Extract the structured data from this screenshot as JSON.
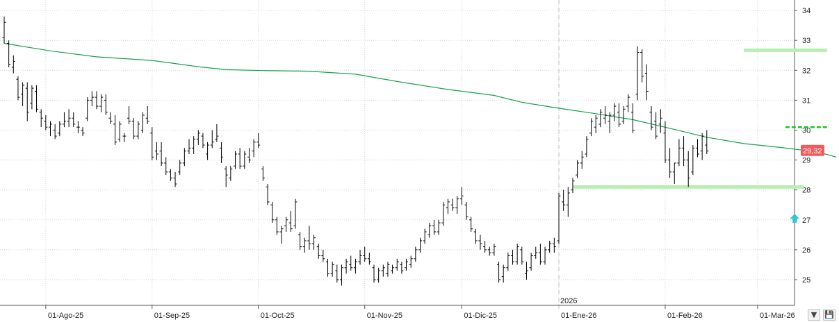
{
  "chart_data": {
    "type": "bar",
    "subtype": "ohlc",
    "title": "",
    "ylim": [
      24.2,
      34.4
    ],
    "y_ticks": [
      25,
      26,
      27,
      28,
      29,
      30,
      31,
      32,
      33,
      34
    ],
    "x_ticks": [
      {
        "label": "01-Ago-25",
        "index": 9
      },
      {
        "label": "01-Sep-25",
        "index": 32
      },
      {
        "label": "01-Oct-25",
        "index": 55
      },
      {
        "label": "01-Nov-25",
        "index": 78
      },
      {
        "label": "01-Dic-25",
        "index": 99
      },
      {
        "label": "01-Ene-26",
        "index": 120
      },
      {
        "label": "01-Feb-26",
        "index": 143
      },
      {
        "label": "01-Mar-26",
        "index": 163
      }
    ],
    "year_marker": {
      "label": "2026",
      "index": 120
    },
    "last_price": "29,32",
    "last_price_value": 29.32,
    "ohlc": [
      [
        33.1,
        33.8,
        32.9,
        33.6
      ],
      [
        32.9,
        33.0,
        32.1,
        32.2
      ],
      [
        32.1,
        32.5,
        31.9,
        32.3
      ],
      [
        31.7,
        31.8,
        31.0,
        31.1
      ],
      [
        31.2,
        31.6,
        30.8,
        31.5
      ],
      [
        31.4,
        31.6,
        30.3,
        30.6
      ],
      [
        30.9,
        31.5,
        30.7,
        31.4
      ],
      [
        31.3,
        31.5,
        30.6,
        30.7
      ],
      [
        30.6,
        30.7,
        30.1,
        30.4
      ],
      [
        30.3,
        30.5,
        30.0,
        30.1
      ],
      [
        30.1,
        30.3,
        29.8,
        30.2
      ],
      [
        30.0,
        30.2,
        29.7,
        29.8
      ],
      [
        29.9,
        30.3,
        29.8,
        30.2
      ],
      [
        30.2,
        30.6,
        30.1,
        30.3
      ],
      [
        30.3,
        30.7,
        30.1,
        30.4
      ],
      [
        30.4,
        30.6,
        30.1,
        30.2
      ],
      [
        30.1,
        30.3,
        29.9,
        30.1
      ],
      [
        30.0,
        30.1,
        29.8,
        29.9
      ],
      [
        30.4,
        31.1,
        30.3,
        31.0
      ],
      [
        31.0,
        31.3,
        30.8,
        31.1
      ],
      [
        31.1,
        31.3,
        30.7,
        30.8
      ],
      [
        30.8,
        31.2,
        30.6,
        31.1
      ],
      [
        31.0,
        31.2,
        30.5,
        30.6
      ],
      [
        30.4,
        30.6,
        30.2,
        30.3
      ],
      [
        30.2,
        30.5,
        29.5,
        29.6
      ],
      [
        29.7,
        30.3,
        29.6,
        30.2
      ],
      [
        29.8,
        29.9,
        29.6,
        29.8
      ],
      [
        30.4,
        30.8,
        30.2,
        30.3
      ],
      [
        30.3,
        30.4,
        29.7,
        29.8
      ],
      [
        29.8,
        30.3,
        29.7,
        30.2
      ],
      [
        30.0,
        30.6,
        29.9,
        30.5
      ],
      [
        30.4,
        30.8,
        30.2,
        30.3
      ],
      [
        29.9,
        30.1,
        29.0,
        29.1
      ],
      [
        29.3,
        29.6,
        29.0,
        29.2
      ],
      [
        29.3,
        29.6,
        28.8,
        28.9
      ],
      [
        28.9,
        29.1,
        28.5,
        28.6
      ],
      [
        28.6,
        28.7,
        28.3,
        28.4
      ],
      [
        28.4,
        28.6,
        28.1,
        28.2
      ],
      [
        28.6,
        29.0,
        28.5,
        28.9
      ],
      [
        28.9,
        29.4,
        28.8,
        29.3
      ],
      [
        29.3,
        29.7,
        29.2,
        29.4
      ],
      [
        29.4,
        29.8,
        29.2,
        29.7
      ],
      [
        29.7,
        30.0,
        29.5,
        29.9
      ],
      [
        29.8,
        29.9,
        29.4,
        29.5
      ],
      [
        29.2,
        29.6,
        29.0,
        29.5
      ],
      [
        29.5,
        30.0,
        29.4,
        29.6
      ],
      [
        29.7,
        30.2,
        29.6,
        29.8
      ],
      [
        29.4,
        29.6,
        28.9,
        29.1
      ],
      [
        28.7,
        28.8,
        28.1,
        28.5
      ],
      [
        28.4,
        28.8,
        28.3,
        28.7
      ],
      [
        28.8,
        29.3,
        28.7,
        29.2
      ],
      [
        29.2,
        29.4,
        28.7,
        28.8
      ],
      [
        28.8,
        29.3,
        28.7,
        29.2
      ],
      [
        29.1,
        29.4,
        28.9,
        29.0
      ],
      [
        29.3,
        29.7,
        29.1,
        29.6
      ],
      [
        29.6,
        29.9,
        29.4,
        29.5
      ],
      [
        28.7,
        28.8,
        28.3,
        28.4
      ],
      [
        28.1,
        28.2,
        27.5,
        27.6
      ],
      [
        27.5,
        27.6,
        26.9,
        27.0
      ],
      [
        27.0,
        27.1,
        26.5,
        26.6
      ],
      [
        26.6,
        26.8,
        26.2,
        26.7
      ],
      [
        26.8,
        27.1,
        26.6,
        27.0
      ],
      [
        26.9,
        27.3,
        26.6,
        26.7
      ],
      [
        26.8,
        27.7,
        26.7,
        27.6
      ],
      [
        26.5,
        26.6,
        26.0,
        26.1
      ],
      [
        26.1,
        26.4,
        25.9,
        26.3
      ],
      [
        26.3,
        26.8,
        26.0,
        26.2
      ],
      [
        26.2,
        26.5,
        26.0,
        26.4
      ],
      [
        26.1,
        26.2,
        25.7,
        25.8
      ],
      [
        25.8,
        26.0,
        25.6,
        25.7
      ],
      [
        25.6,
        25.7,
        25.1,
        25.2
      ],
      [
        25.2,
        25.6,
        25.1,
        25.5
      ],
      [
        25.3,
        25.5,
        24.9,
        25.0
      ],
      [
        25.0,
        25.5,
        24.8,
        25.4
      ],
      [
        25.4,
        25.7,
        25.2,
        25.6
      ],
      [
        25.5,
        25.8,
        25.3,
        25.4
      ],
      [
        25.4,
        25.7,
        25.2,
        25.6
      ],
      [
        25.6,
        26.0,
        25.5,
        25.8
      ],
      [
        25.8,
        26.1,
        25.6,
        25.7
      ],
      [
        25.7,
        25.9,
        25.5,
        25.6
      ],
      [
        25.4,
        25.5,
        24.9,
        25.0
      ],
      [
        25.0,
        25.4,
        24.9,
        25.3
      ],
      [
        25.3,
        25.5,
        25.1,
        25.4
      ],
      [
        25.2,
        25.6,
        25.1,
        25.5
      ],
      [
        25.3,
        25.5,
        25.2,
        25.4
      ],
      [
        25.4,
        25.7,
        25.3,
        25.6
      ],
      [
        25.5,
        25.6,
        25.2,
        25.3
      ],
      [
        25.4,
        25.7,
        25.3,
        25.6
      ],
      [
        25.5,
        25.8,
        25.4,
        25.7
      ],
      [
        25.7,
        26.1,
        25.6,
        26.0
      ],
      [
        26.0,
        26.4,
        25.9,
        26.3
      ],
      [
        26.3,
        26.7,
        26.2,
        26.6
      ],
      [
        26.5,
        26.9,
        26.4,
        26.8
      ],
      [
        26.8,
        27.0,
        26.5,
        26.6
      ],
      [
        26.6,
        27.0,
        26.5,
        26.9
      ],
      [
        26.9,
        27.6,
        26.8,
        27.5
      ],
      [
        27.4,
        27.7,
        27.2,
        27.6
      ],
      [
        27.5,
        27.7,
        27.3,
        27.4
      ],
      [
        27.4,
        27.8,
        27.2,
        27.7
      ],
      [
        27.7,
        28.1,
        27.5,
        27.8
      ],
      [
        27.5,
        27.6,
        27.0,
        27.1
      ],
      [
        27.0,
        27.1,
        26.6,
        26.7
      ],
      [
        26.6,
        26.7,
        26.2,
        26.3
      ],
      [
        26.3,
        26.5,
        26.0,
        26.2
      ],
      [
        26.1,
        26.3,
        25.9,
        26.0
      ],
      [
        26.0,
        26.1,
        25.8,
        25.9
      ],
      [
        25.9,
        26.2,
        25.8,
        26.1
      ],
      [
        25.5,
        25.6,
        24.9,
        25.0
      ],
      [
        25.1,
        25.5,
        24.9,
        25.4
      ],
      [
        25.4,
        25.9,
        25.3,
        25.8
      ],
      [
        25.8,
        26.0,
        25.5,
        25.6
      ],
      [
        25.6,
        26.2,
        25.5,
        26.1
      ],
      [
        26.0,
        26.1,
        25.5,
        25.6
      ],
      [
        25.2,
        25.6,
        25.0,
        25.3
      ],
      [
        25.4,
        25.9,
        25.3,
        25.8
      ],
      [
        25.8,
        26.1,
        25.7,
        25.9
      ],
      [
        25.9,
        26.2,
        25.5,
        25.6
      ],
      [
        25.6,
        26.1,
        25.5,
        26.0
      ],
      [
        26.0,
        26.3,
        25.9,
        26.2
      ],
      [
        26.2,
        26.4,
        25.9,
        26.1
      ],
      [
        26.3,
        27.9,
        26.2,
        27.8
      ],
      [
        27.6,
        28.0,
        27.3,
        27.5
      ],
      [
        27.5,
        28.1,
        27.1,
        27.9
      ],
      [
        28.0,
        28.4,
        27.9,
        28.3
      ],
      [
        28.5,
        29.0,
        28.4,
        28.9
      ],
      [
        28.9,
        29.3,
        28.7,
        29.1
      ],
      [
        29.2,
        29.8,
        29.1,
        29.7
      ],
      [
        29.9,
        30.4,
        29.8,
        30.3
      ],
      [
        30.1,
        30.5,
        29.9,
        30.4
      ],
      [
        30.2,
        30.7,
        30.1,
        30.6
      ],
      [
        30.4,
        30.8,
        30.2,
        30.5
      ],
      [
        30.3,
        30.6,
        29.9,
        30.5
      ],
      [
        30.5,
        30.9,
        30.3,
        30.8
      ],
      [
        30.6,
        30.9,
        30.1,
        30.2
      ],
      [
        30.3,
        30.8,
        30.2,
        30.7
      ],
      [
        30.8,
        31.2,
        30.6,
        31.1
      ],
      [
        30.6,
        30.9,
        29.9,
        30.0
      ],
      [
        31.2,
        32.8,
        31.0,
        32.6
      ],
      [
        32.6,
        32.7,
        31.6,
        31.8
      ],
      [
        31.9,
        32.2,
        31.0,
        31.3
      ],
      [
        30.6,
        30.8,
        30.0,
        30.1
      ],
      [
        30.3,
        30.6,
        29.7,
        29.8
      ],
      [
        30.2,
        30.7,
        29.9,
        30.4
      ],
      [
        29.9,
        30.3,
        28.9,
        29.0
      ],
      [
        29.0,
        29.4,
        28.4,
        28.6
      ],
      [
        28.6,
        28.9,
        28.2,
        28.9
      ],
      [
        28.9,
        29.7,
        28.8,
        29.4
      ],
      [
        29.4,
        29.8,
        28.8,
        29.0
      ],
      [
        29.0,
        29.3,
        28.1,
        28.4
      ],
      [
        28.6,
        29.5,
        28.5,
        29.4
      ],
      [
        29.4,
        29.7,
        29.1,
        29.2
      ],
      [
        29.3,
        29.9,
        29.0,
        29.8
      ],
      [
        29.5,
        30.0,
        29.2,
        29.3
      ]
    ],
    "moving_average": [
      [
        0,
        32.9
      ],
      [
        10,
        32.65
      ],
      [
        20,
        32.45
      ],
      [
        32,
        32.33
      ],
      [
        42,
        32.12
      ],
      [
        48,
        32.02
      ],
      [
        56,
        31.99
      ],
      [
        66,
        31.97
      ],
      [
        76,
        31.87
      ],
      [
        86,
        31.6
      ],
      [
        96,
        31.36
      ],
      [
        106,
        31.16
      ],
      [
        112,
        30.93
      ],
      [
        120,
        30.73
      ],
      [
        128,
        30.55
      ],
      [
        136,
        30.35
      ],
      [
        144,
        30.06
      ],
      [
        152,
        29.76
      ],
      [
        160,
        29.55
      ],
      [
        168,
        29.42
      ],
      [
        176,
        29.27
      ],
      [
        180,
        29.1
      ]
    ],
    "levels": [
      {
        "name": "resistance",
        "value": 32.67,
        "from_index": 160,
        "to_index": 178,
        "style": "solid",
        "color": "#b7efb2"
      },
      {
        "name": "support",
        "value": 28.1,
        "from_index": 123,
        "to_index": 173,
        "style": "solid",
        "color": "#b7efb2"
      },
      {
        "name": "short-resistance",
        "value": 30.1,
        "from_index": 169,
        "to_index": 178,
        "style": "dashed",
        "color": "#19c61e"
      }
    ],
    "arrow": {
      "index": 171,
      "value": 27.2,
      "color": "#2fc7d3"
    },
    "colors": {
      "bars": "#000000",
      "moving_average": "#17a14a",
      "last_price_badge": "#f05c5c",
      "grid": "#d3d3d3",
      "year_line": "#bdbdbd"
    }
  },
  "toolbar": {
    "left_icon": "down-arrow-icon",
    "save_icon": "save-icon"
  }
}
